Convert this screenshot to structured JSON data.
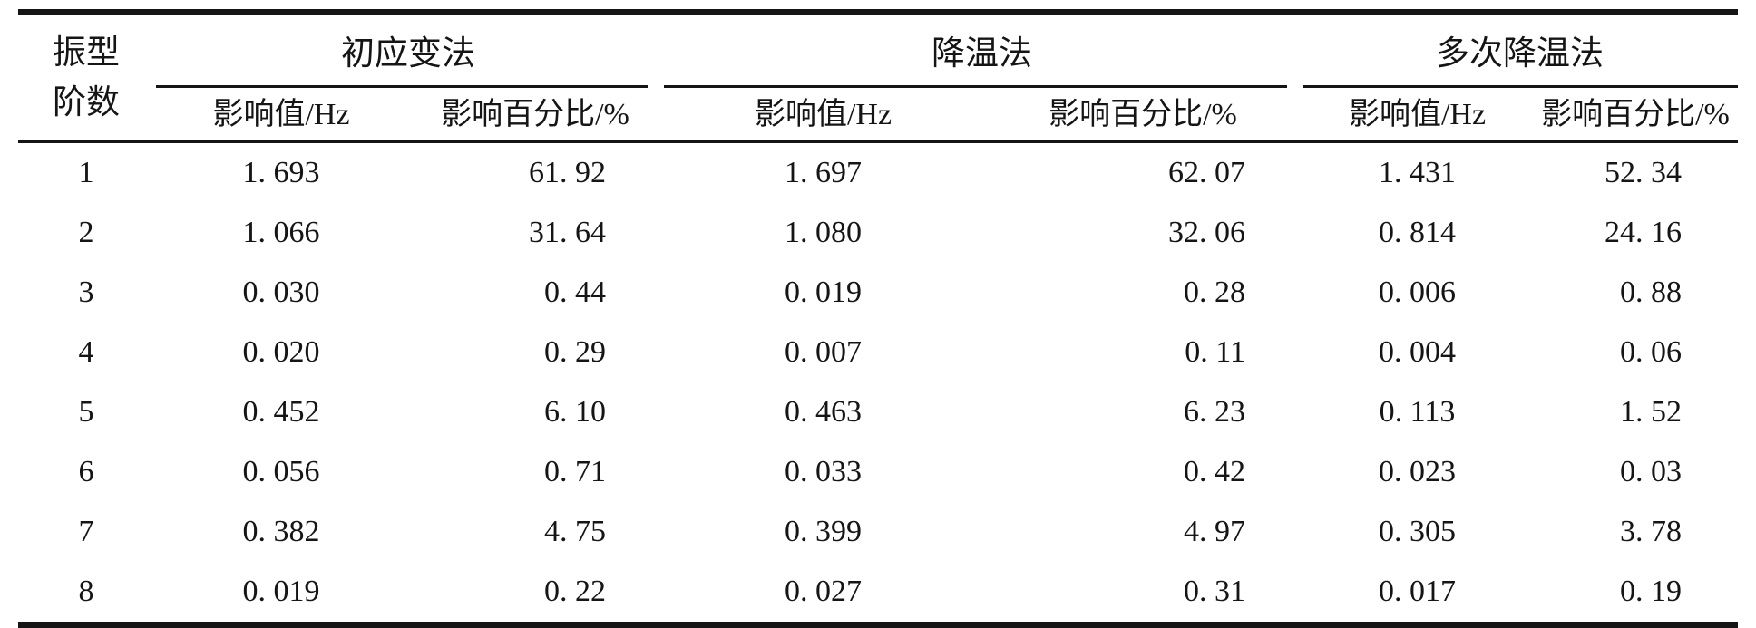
{
  "colors": {
    "background": "#ffffff",
    "text": "#151515",
    "rule": "#151515"
  },
  "table": {
    "corner": [
      "振型",
      "阶数"
    ],
    "groups": [
      "初应变法",
      "降温法",
      "多次降温法"
    ],
    "subheaders": [
      "影响值/Hz",
      "影响百分比/%"
    ],
    "rows": [
      [
        "1",
        "1. 693",
        "61. 92",
        "1. 697",
        "62. 07",
        "1. 431",
        "52. 34"
      ],
      [
        "2",
        "1. 066",
        "31. 64",
        "1. 080",
        "32. 06",
        "0. 814",
        "24. 16"
      ],
      [
        "3",
        "0. 030",
        "0. 44",
        "0. 019",
        "0. 28",
        "0. 006",
        "0. 88"
      ],
      [
        "4",
        "0. 020",
        "0. 29",
        "0. 007",
        "0. 11",
        "0. 004",
        "0. 06"
      ],
      [
        "5",
        "0. 452",
        "6. 10",
        "0. 463",
        "6. 23",
        "0. 113",
        "1. 52"
      ],
      [
        "6",
        "0. 056",
        "0. 71",
        "0. 033",
        "0. 42",
        "0. 023",
        "0. 03"
      ],
      [
        "7",
        "0. 382",
        "4. 75",
        "0. 399",
        "4. 97",
        "0. 305",
        "3. 78"
      ],
      [
        "8",
        "0. 019",
        "0. 22",
        "0. 027",
        "0. 31",
        "0. 017",
        "0. 19"
      ]
    ]
  },
  "chart_data": {
    "type": "table",
    "columns": [
      "振型阶数",
      "初应变法 影响值/Hz",
      "初应变法 影响百分比/%",
      "降温法 影响值/Hz",
      "降温法 影响百分比/%",
      "多次降温法 影响值/Hz",
      "多次降温法 影响百分比/%"
    ],
    "rows": [
      [
        1,
        1.693,
        61.92,
        1.697,
        62.07,
        1.431,
        52.34
      ],
      [
        2,
        1.066,
        31.64,
        1.08,
        32.06,
        0.814,
        24.16
      ],
      [
        3,
        0.03,
        0.44,
        0.019,
        0.28,
        0.006,
        0.88
      ],
      [
        4,
        0.02,
        0.29,
        0.007,
        0.11,
        0.004,
        0.06
      ],
      [
        5,
        0.452,
        6.1,
        0.463,
        6.23,
        0.113,
        1.52
      ],
      [
        6,
        0.056,
        0.71,
        0.033,
        0.42,
        0.023,
        0.03
      ],
      [
        7,
        0.382,
        4.75,
        0.399,
        4.97,
        0.305,
        3.78
      ],
      [
        8,
        0.019,
        0.22,
        0.027,
        0.31,
        0.017,
        0.19
      ]
    ]
  }
}
